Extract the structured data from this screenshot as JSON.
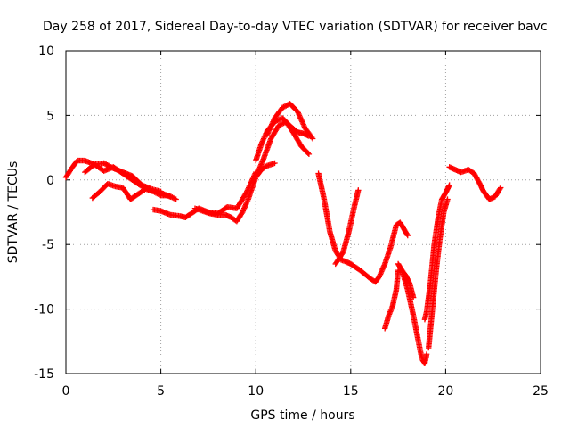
{
  "chart_data": {
    "type": "scatter",
    "title": "Day 258 of 2017, Sidereal Day-to-day VTEC variation (SDTVAR) for receiver bavc",
    "xlabel": "GPS time / hours",
    "ylabel": "SDTVAR / TECUs",
    "xlim": [
      0,
      25
    ],
    "ylim": [
      -15,
      10
    ],
    "xticks": [
      0,
      5,
      10,
      15,
      20,
      25
    ],
    "xtick_labels": [
      "0",
      "5",
      "10",
      "15",
      "20",
      "25"
    ],
    "yticks": [
      -15,
      -10,
      -5,
      0,
      5,
      10
    ],
    "ytick_labels": [
      "-15",
      "-10",
      "-5",
      "0",
      "5",
      "10"
    ],
    "grid": true,
    "marker": "+",
    "marker_color": "#ff0000",
    "series": [
      {
        "name": "trace-1",
        "x": [
          0.0,
          0.3,
          0.6,
          1.0,
          1.5,
          2.0,
          2.5,
          3.0,
          3.5,
          4.0,
          4.5,
          5.0,
          5.5
        ],
        "y": [
          0.2,
          0.9,
          1.5,
          1.5,
          1.2,
          0.7,
          1.0,
          0.5,
          0.0,
          -0.5,
          -0.8,
          -1.0,
          -1.3
        ]
      },
      {
        "name": "trace-2",
        "x": [
          1.0,
          1.5,
          2.0,
          2.5,
          3.0,
          3.5,
          4.0,
          4.5,
          5.0
        ],
        "y": [
          0.6,
          1.2,
          1.3,
          0.9,
          0.6,
          0.3,
          -0.4,
          -0.7,
          -0.9
        ]
      },
      {
        "name": "trace-3",
        "x": [
          1.4,
          1.8,
          2.2,
          2.6,
          3.0,
          3.4,
          3.8,
          4.2,
          4.6,
          5.0,
          5.4,
          5.8
        ],
        "y": [
          -1.4,
          -0.9,
          -0.3,
          -0.5,
          -0.6,
          -1.5,
          -1.1,
          -0.7,
          -0.9,
          -1.2,
          -1.2,
          -1.5
        ]
      },
      {
        "name": "trace-4",
        "x": [
          4.6,
          5.0,
          5.5,
          6.0,
          6.3,
          7.0,
          7.5,
          8.0,
          8.5,
          9.0,
          9.5,
          10.0
        ],
        "y": [
          -2.3,
          -2.4,
          -2.7,
          -2.8,
          -2.9,
          -2.2,
          -2.5,
          -2.6,
          -2.1,
          -2.2,
          -1.0,
          0.6
        ]
      },
      {
        "name": "trace-5",
        "x": [
          6.8,
          7.2,
          7.6,
          8.0,
          8.4,
          8.7,
          9.0,
          9.3,
          9.6,
          10.0,
          10.4,
          10.8,
          11.2,
          11.6,
          12.0,
          12.4,
          12.8
        ],
        "y": [
          -2.2,
          -2.4,
          -2.6,
          -2.7,
          -2.7,
          -2.9,
          -3.2,
          -2.5,
          -1.5,
          0.2,
          1.6,
          3.2,
          4.2,
          4.5,
          3.6,
          2.6,
          2.0
        ]
      },
      {
        "name": "trace-6",
        "x": [
          10.0,
          10.3,
          10.6,
          11.0
        ],
        "y": [
          0.2,
          0.8,
          1.1,
          1.3
        ]
      },
      {
        "name": "trace-7",
        "x": [
          10.0,
          10.3,
          10.6,
          11.0,
          11.4,
          11.8,
          12.2,
          12.5,
          12.8
        ],
        "y": [
          1.5,
          2.8,
          3.8,
          4.5,
          4.8,
          4.2,
          3.7,
          3.6,
          3.4
        ]
      },
      {
        "name": "trace-8",
        "x": [
          10.6,
          11.0,
          11.4,
          11.8,
          12.2,
          12.6,
          13.0
        ],
        "y": [
          3.5,
          4.8,
          5.6,
          5.9,
          5.3,
          4.0,
          3.2
        ]
      },
      {
        "name": "trace-9",
        "x": [
          13.3,
          13.6,
          13.9,
          14.2,
          14.5,
          14.7,
          15.0,
          15.5,
          16.0,
          16.3,
          16.5,
          16.8,
          17.1,
          17.4,
          17.6,
          17.8,
          18.0
        ],
        "y": [
          0.5,
          -1.5,
          -4.0,
          -5.5,
          -6.2,
          -6.3,
          -6.5,
          -7.0,
          -7.6,
          -7.9,
          -7.5,
          -6.5,
          -5.2,
          -3.5,
          -3.3,
          -3.8,
          -4.3
        ]
      },
      {
        "name": "trace-10",
        "x": [
          14.2,
          14.6,
          14.9,
          15.2,
          15.4
        ],
        "y": [
          -6.5,
          -5.6,
          -4.0,
          -2.0,
          -0.8
        ]
      },
      {
        "name": "trace-11",
        "x": [
          16.8,
          17.0,
          17.2,
          17.4,
          17.5,
          17.7,
          18.0,
          18.3,
          18.5,
          18.7,
          18.8,
          18.9,
          19.0
        ],
        "y": [
          -11.5,
          -10.5,
          -9.8,
          -8.5,
          -7.0,
          -7.0,
          -8.5,
          -10.5,
          -12.0,
          -13.5,
          -14.0,
          -14.2,
          -13.5
        ]
      },
      {
        "name": "trace-12",
        "x": [
          17.5,
          17.7,
          17.9,
          18.1,
          18.3
        ],
        "y": [
          -6.5,
          -7.0,
          -7.4,
          -8.0,
          -9.1
        ]
      },
      {
        "name": "trace-13",
        "x": [
          18.9,
          19.0,
          19.2,
          19.4,
          19.6,
          19.8,
          20.0,
          20.2
        ],
        "y": [
          -10.8,
          -10.2,
          -8.0,
          -5.0,
          -3.0,
          -1.5,
          -1.0,
          -0.4
        ]
      },
      {
        "name": "trace-14",
        "x": [
          19.1,
          19.3,
          19.5,
          19.7,
          19.9,
          20.1
        ],
        "y": [
          -13.0,
          -10.0,
          -7.0,
          -4.5,
          -2.5,
          -1.5
        ]
      },
      {
        "name": "trace-15",
        "x": [
          20.2,
          20.5,
          20.8,
          21.2,
          21.5,
          21.8,
          22.0,
          22.3,
          22.6,
          22.9
        ],
        "y": [
          1.0,
          0.8,
          0.6,
          0.8,
          0.5,
          -0.3,
          -0.9,
          -1.5,
          -1.3,
          -0.6
        ]
      }
    ]
  }
}
